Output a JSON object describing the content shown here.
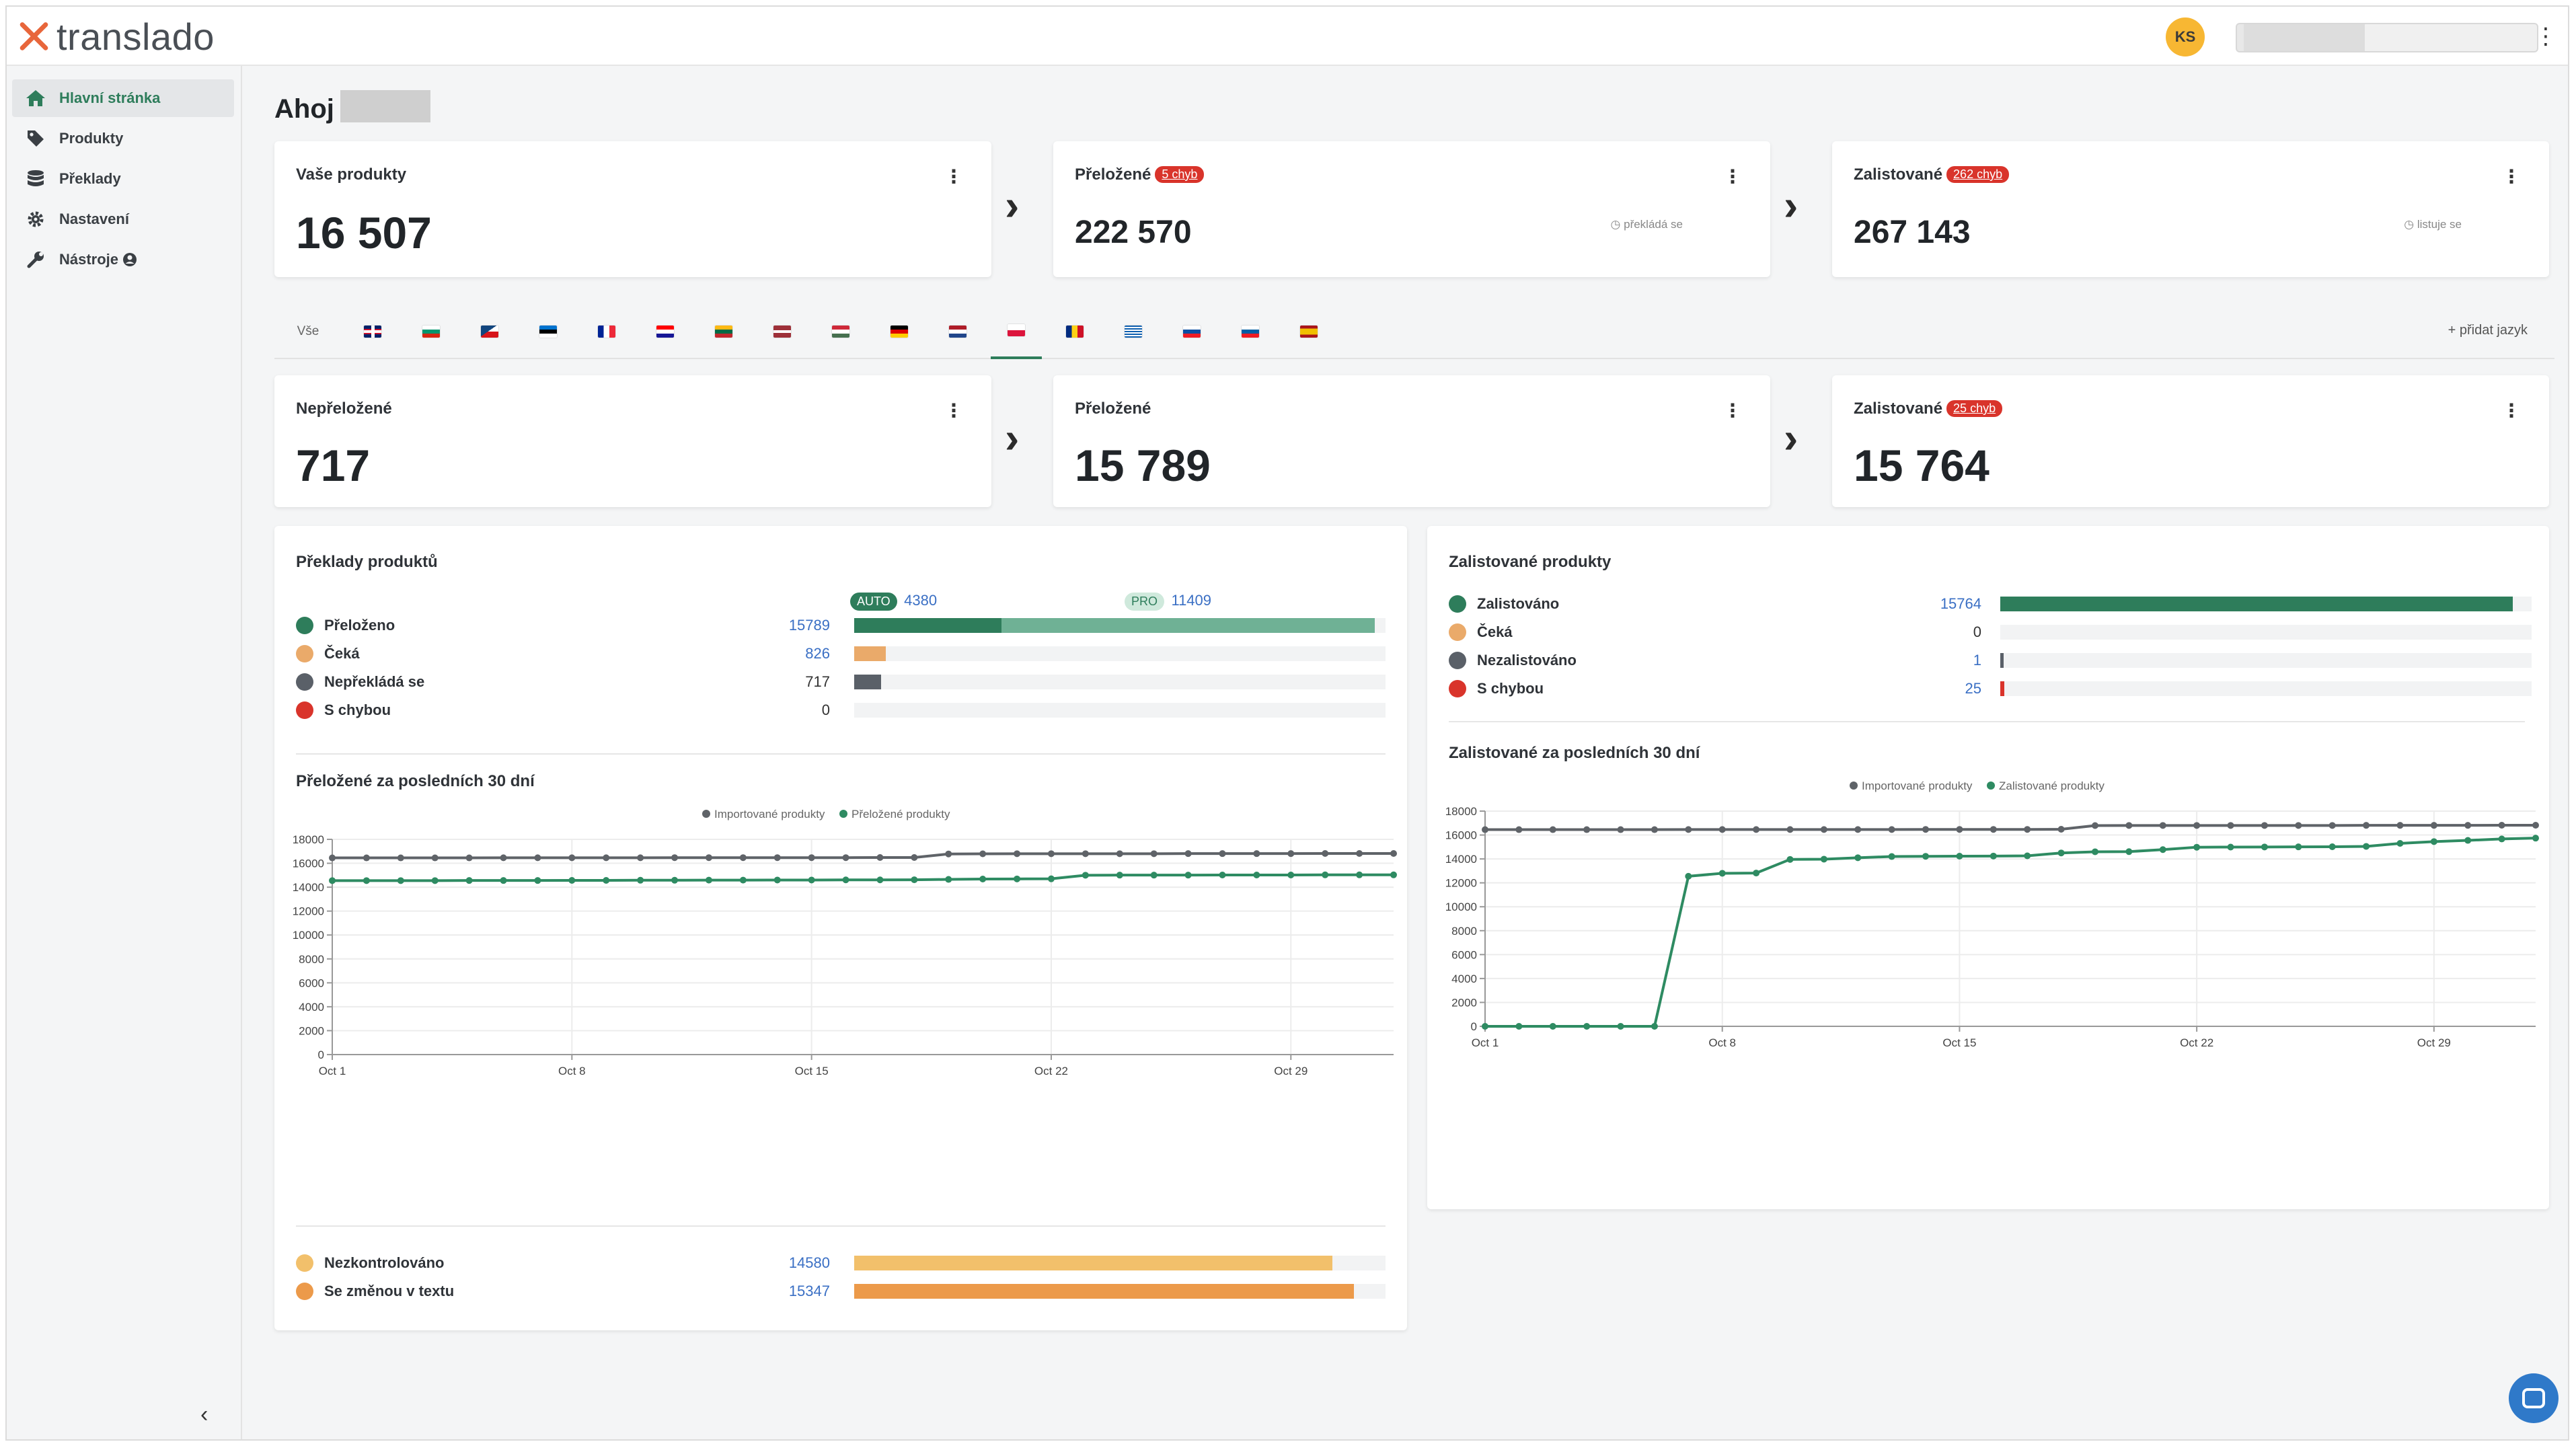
{
  "app": {
    "name": "translado",
    "avatar_initials": "KS",
    "menu_icon": "vertical-dots-icon"
  },
  "sidebar": {
    "items": [
      {
        "label": "Hlavní stránka",
        "icon": "home-icon",
        "active": true
      },
      {
        "label": "Produkty",
        "icon": "tag-icon",
        "active": false
      },
      {
        "label": "Překlady",
        "icon": "database-icon",
        "active": false
      },
      {
        "label": "Nastavení",
        "icon": "gear-icon",
        "active": false
      },
      {
        "label": "Nástroje",
        "icon": "wrench-icon",
        "active": false
      }
    ],
    "collapse": "‹"
  },
  "greeting": "Ahoj",
  "summary": {
    "products": {
      "title": "Vaše produkty",
      "value": "16 507"
    },
    "translated": {
      "title": "Přeložené",
      "badge": "5 chyb",
      "value": "222 570",
      "hint": "překládá se"
    },
    "listed": {
      "title": "Zalistované",
      "badge": "262 chyb",
      "value": "267 143",
      "hint": "listuje se"
    }
  },
  "languages": {
    "all_label": "Vše",
    "flags": [
      "gb",
      "bg",
      "cz",
      "ee",
      "fr",
      "hr",
      "lt",
      "lv",
      "hu",
      "de",
      "nl",
      "pl",
      "ro",
      "gr",
      "sk",
      "si",
      "es"
    ],
    "active": "pl",
    "add_label": "+ přidat jazyk"
  },
  "lang_summary": {
    "untranslated": {
      "title": "Nepřeložené",
      "value": "717"
    },
    "translated": {
      "title": "Přeložené",
      "value": "15 789"
    },
    "listed": {
      "title": "Zalistované",
      "badge": "25 chyb",
      "value": "15 764"
    }
  },
  "translations_panel": {
    "title": "Překlady produktů",
    "auto_label": "AUTO",
    "auto_value": "4380",
    "pro_label": "PRO",
    "pro_value": "11409",
    "auto_share": 0.277,
    "pro_share": 0.703,
    "rows": [
      {
        "label": "Přeloženo",
        "value": "15789",
        "color": "#2e7d5b",
        "fraction": 0.98
      },
      {
        "label": "Čeká",
        "value": "826",
        "color": "#eaaa6a",
        "fraction": 0.06
      },
      {
        "label": "Nepřekládá se",
        "value": "717",
        "color": "#5a6068",
        "fraction": 0.05
      },
      {
        "label": "S chybou",
        "value": "0",
        "color": "#d9342b",
        "fraction": 0.0
      }
    ],
    "chart_title": "Přeložené za posledních 30 dní",
    "review_rows": [
      {
        "label": "Nezkontrolováno",
        "value": "14580",
        "color": "#f2c06b",
        "fraction": 0.9
      },
      {
        "label": "Se změnou v textu",
        "value": "15347",
        "color": "#ec9a4a",
        "fraction": 0.94
      }
    ]
  },
  "listed_panel": {
    "title": "Zalistované produkty",
    "rows": [
      {
        "label": "Zalistováno",
        "value": "15764",
        "color": "#2e7d5b",
        "fraction": 0.964,
        "link": true
      },
      {
        "label": "Čeká",
        "value": "0",
        "color": "#eaaa6a",
        "fraction": 0.0,
        "link": false
      },
      {
        "label": "Nezalistováno",
        "value": "1",
        "color": "#5a6068",
        "fraction": 0.006,
        "link": true
      },
      {
        "label": "S chybou",
        "value": "25",
        "color": "#d9342b",
        "fraction": 0.008,
        "link": true
      }
    ],
    "chart_title": "Zalistované za posledních 30 dní"
  },
  "chart_data": [
    {
      "type": "line",
      "x": [
        "Oct 1",
        "Oct 2",
        "Oct 3",
        "Oct 4",
        "Oct 5",
        "Oct 6",
        "Oct 7",
        "Oct 8",
        "Oct 9",
        "Oct 10",
        "Oct 11",
        "Oct 12",
        "Oct 13",
        "Oct 14",
        "Oct 15",
        "Oct 16",
        "Oct 17",
        "Oct 18",
        "Oct 19",
        "Oct 20",
        "Oct 21",
        "Oct 22",
        "Oct 23",
        "Oct 24",
        "Oct 25",
        "Oct 26",
        "Oct 27",
        "Oct 28",
        "Oct 29",
        "Oct 30",
        "Oct 31",
        "Nov 1"
      ],
      "xticks": [
        "Oct 1",
        "Oct 8",
        "Oct 15",
        "Oct 22",
        "Oct 29"
      ],
      "ylim": [
        0,
        18000
      ],
      "yticks": [
        0,
        2000,
        4000,
        6000,
        8000,
        10000,
        12000,
        14000,
        16000,
        18000
      ],
      "legend_position": "top",
      "series": [
        {
          "name": "Importované produkty",
          "color": "#5f6368",
          "values": [
            16450,
            16450,
            16450,
            16450,
            16450,
            16460,
            16460,
            16460,
            16460,
            16460,
            16470,
            16470,
            16470,
            16470,
            16470,
            16470,
            16480,
            16480,
            16780,
            16790,
            16800,
            16800,
            16800,
            16800,
            16800,
            16810,
            16810,
            16810,
            16810,
            16820,
            16820,
            16820
          ]
        },
        {
          "name": "Přeložené produkty",
          "color": "#2e8b62",
          "values": [
            14550,
            14550,
            14550,
            14550,
            14560,
            14560,
            14560,
            14570,
            14570,
            14580,
            14580,
            14590,
            14590,
            14600,
            14600,
            14610,
            14610,
            14620,
            14650,
            14680,
            14690,
            14700,
            15000,
            15010,
            15010,
            15010,
            15020,
            15020,
            15020,
            15030,
            15030,
            15030
          ]
        }
      ]
    },
    {
      "type": "line",
      "x": [
        "Oct 1",
        "Oct 2",
        "Oct 3",
        "Oct 4",
        "Oct 5",
        "Oct 6",
        "Oct 7",
        "Oct 8",
        "Oct 9",
        "Oct 10",
        "Oct 11",
        "Oct 12",
        "Oct 13",
        "Oct 14",
        "Oct 15",
        "Oct 16",
        "Oct 17",
        "Oct 18",
        "Oct 19",
        "Oct 20",
        "Oct 21",
        "Oct 22",
        "Oct 23",
        "Oct 24",
        "Oct 25",
        "Oct 26",
        "Oct 27",
        "Oct 28",
        "Oct 29",
        "Oct 30",
        "Oct 31",
        "Nov 1"
      ],
      "xticks": [
        "Oct 1",
        "Oct 8",
        "Oct 15",
        "Oct 22",
        "Oct 29"
      ],
      "ylim": [
        0,
        18000
      ],
      "yticks": [
        0,
        2000,
        4000,
        6000,
        8000,
        10000,
        12000,
        14000,
        16000,
        18000
      ],
      "legend_position": "top",
      "series": [
        {
          "name": "Importované produkty",
          "color": "#5f6368",
          "values": [
            16450,
            16450,
            16450,
            16450,
            16450,
            16450,
            16460,
            16460,
            16460,
            16460,
            16460,
            16460,
            16460,
            16470,
            16470,
            16470,
            16470,
            16480,
            16790,
            16800,
            16800,
            16800,
            16800,
            16800,
            16800,
            16800,
            16810,
            16810,
            16810,
            16810,
            16820,
            16820
          ]
        },
        {
          "name": "Zalistované produkty",
          "color": "#2e8b62",
          "values": [
            0,
            0,
            0,
            0,
            0,
            0,
            12550,
            12800,
            12820,
            13960,
            13980,
            14100,
            14200,
            14220,
            14230,
            14240,
            14260,
            14500,
            14600,
            14610,
            14780,
            14980,
            14990,
            15000,
            15010,
            15020,
            15050,
            15300,
            15450,
            15550,
            15670,
            15740
          ]
        }
      ]
    }
  ]
}
